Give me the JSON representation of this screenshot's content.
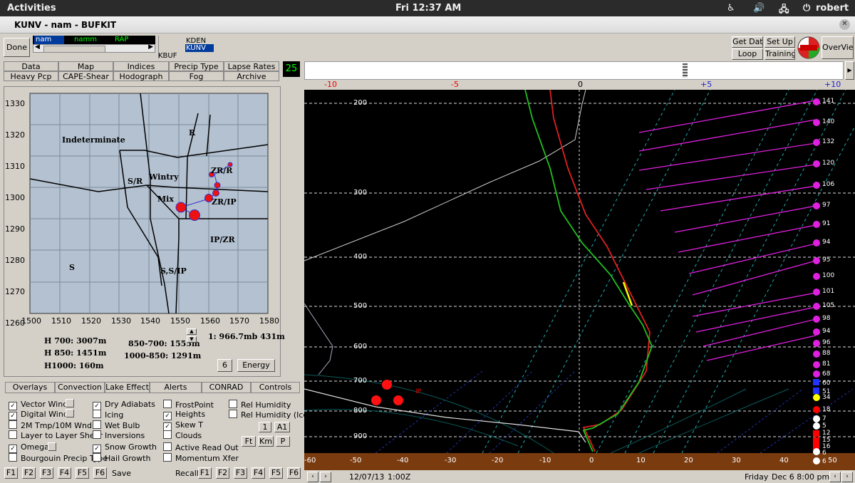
{
  "system_bar": {
    "activities": "Activities",
    "clock": "Fri 12:37 AM",
    "user": "robert"
  },
  "window": {
    "title": "KUNV - nam - BUFKIT"
  },
  "toolbar": {
    "done": "Done",
    "model_list": [
      "nam",
      "namm",
      "RAP"
    ],
    "stations": [
      "KDEN",
      "KUNV"
    ],
    "station_label": "KBUF",
    "get_data": "Get Data",
    "set_up": "Set Up",
    "loop": "Loop",
    "training": "Training",
    "overview": "OverView",
    "frame_count": "25"
  },
  "menu_tabs": {
    "row1": [
      "Data",
      "Map",
      "Indices",
      "Precip Type",
      "Lapse Rates"
    ],
    "row2": [
      "Heavy Pcp",
      "CAPE-Shear",
      "Hodograph",
      "Fog",
      "Archive"
    ]
  },
  "nomogram": {
    "y_ticks": [
      "1330",
      "1320",
      "1310",
      "1300",
      "1290",
      "1280",
      "1270",
      "1260"
    ],
    "x_ticks": [
      "1500",
      "1510",
      "1520",
      "1530",
      "1540",
      "1550",
      "1560",
      "1570",
      "1580"
    ],
    "regions": {
      "indeterminate": "Indeterminate",
      "r": "R",
      "sr": "S/R",
      "wintry": "Wintry",
      "mix": "Mix",
      "zr_r": "ZR/R",
      "zr_ip": "ZR/IP",
      "ip_zr": "IP/ZR",
      "s": "S",
      "s_s_ip": "S,S/IP"
    },
    "h700": "H 700:  3007m",
    "h850": "H 850:  1451m",
    "h1000": "H1000:   160m",
    "thick_850_700": "850-700: 1555m",
    "thick_1000_850": "1000-850: 1291m",
    "level": "1: 966.7mb  431m",
    "btn_6": "6",
    "btn_energy": "Energy"
  },
  "bottom_tabs": [
    "Overlays",
    "Convection",
    "Lake Effect",
    "Alerts",
    "CONRAD",
    "Controls"
  ],
  "checkboxes": [
    {
      "label": "Vector Winds",
      "checked": true
    },
    {
      "label": "Digital Winds",
      "checked": true
    },
    {
      "label": "2M Tmp/10M Wnd",
      "checked": false
    },
    {
      "label": "Layer to Layer Shear",
      "checked": false
    },
    {
      "label": "Omega",
      "checked": true
    },
    {
      "label": "Bourgouin Precip Type",
      "checked": false
    },
    {
      "label": "Dry Adiabats",
      "checked": true
    },
    {
      "label": "Icing",
      "checked": false
    },
    {
      "label": "Wet Bulb",
      "checked": false
    },
    {
      "label": "Inversions",
      "checked": false
    },
    {
      "label": "Snow Growth",
      "checked": true
    },
    {
      "label": "Hail Growth",
      "checked": false
    },
    {
      "label": "FrostPoint",
      "checked": false
    },
    {
      "label": "Heights",
      "checked": true
    },
    {
      "label": "Skew T",
      "checked": true
    },
    {
      "label": "Clouds",
      "checked": false
    },
    {
      "label": "Active Read Out",
      "checked": false
    },
    {
      "label": "Momentum Xfer",
      "checked": false
    },
    {
      "label": "Rel Humidity",
      "checked": false
    },
    {
      "label": "Rel Humidity (Ice)",
      "checked": false
    }
  ],
  "small_buttons": [
    "1",
    "A1",
    "Ft",
    "Km",
    "P"
  ],
  "function_keys": [
    "F1",
    "F2",
    "F3",
    "F4",
    "F5",
    "F6"
  ],
  "save": "Save",
  "recall": "Recall",
  "skewt": {
    "top_scale": [
      "-10",
      "-5",
      "0",
      "+5",
      "+10"
    ],
    "pressure_labels": [
      "200",
      "300",
      "400",
      "500",
      "600",
      "700",
      "800",
      "900"
    ],
    "temp_labels": [
      "-60",
      "-50",
      "-40",
      "-30",
      "-20",
      "-10",
      "0",
      "10",
      "20",
      "30",
      "40",
      "50"
    ],
    "ip_label": "IP",
    "omega_values": [
      "141",
      "140",
      "132",
      "120",
      "106",
      "97",
      "91",
      "94",
      "95",
      "100",
      "101",
      "105",
      "98",
      "94",
      "96",
      "88",
      "81",
      "68",
      "60",
      "51",
      "34",
      "18",
      "7",
      "5",
      "12",
      "15",
      "16",
      "6",
      "6"
    ],
    "date_left": "12/07/13",
    "time_left": "1:00Z",
    "date_right": "Friday",
    "date_right2": "Dec 6  8:00 pm"
  }
}
